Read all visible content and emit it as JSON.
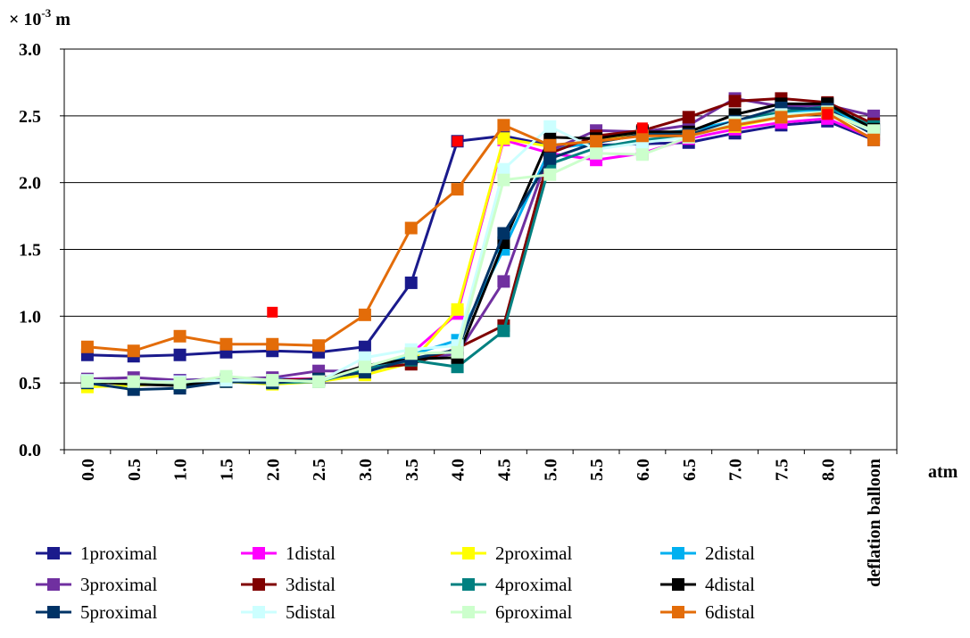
{
  "chart_data": {
    "type": "line",
    "ylabel_unit": "× 10",
    "ylabel_exp": "-3",
    "ylabel_suffix": " m",
    "xlabel": "atm",
    "ylim": [
      0,
      3.0
    ],
    "yticks": [
      "0.0",
      "0.5",
      "1.0",
      "1.5",
      "2.0",
      "2.5",
      "3.0"
    ],
    "categories": [
      "0.0",
      "0.5",
      "1.0",
      "1.5",
      "2.0",
      "2.5",
      "3.0",
      "3.5",
      "4.0",
      "4.5",
      "5.0",
      "5.5",
      "6.0",
      "6.5",
      "7.0",
      "7.5",
      "8.0",
      "deflation balloon"
    ],
    "grid": true,
    "legend_position": "bottom",
    "series": [
      {
        "name": "1proximal",
        "color": "#1a1a8c",
        "values": [
          0.71,
          0.7,
          0.71,
          0.73,
          0.74,
          0.73,
          0.77,
          1.25,
          2.31,
          2.35,
          2.28,
          2.28,
          2.29,
          2.3,
          2.37,
          2.43,
          2.46,
          2.32
        ]
      },
      {
        "name": "1distal",
        "color": "#ff00ff",
        "values": [
          0.5,
          0.5,
          0.52,
          0.53,
          0.53,
          0.53,
          0.6,
          0.72,
          1.02,
          2.32,
          2.22,
          2.17,
          2.22,
          2.33,
          2.4,
          2.45,
          2.48,
          2.33
        ]
      },
      {
        "name": "2proximal",
        "color": "#ffff00",
        "values": [
          0.47,
          0.48,
          0.5,
          0.51,
          0.49,
          0.51,
          0.56,
          0.65,
          1.05,
          2.33,
          2.27,
          2.31,
          2.36,
          2.37,
          2.42,
          2.49,
          2.53,
          2.37
        ]
      },
      {
        "name": "2distal",
        "color": "#00b0f0",
        "values": [
          0.52,
          0.5,
          0.52,
          0.53,
          0.53,
          0.52,
          0.61,
          0.71,
          0.82,
          1.5,
          2.25,
          2.3,
          2.36,
          2.39,
          2.46,
          2.52,
          2.55,
          2.4
        ]
      },
      {
        "name": "3proximal",
        "color": "#7030a0",
        "values": [
          0.53,
          0.54,
          0.52,
          0.53,
          0.54,
          0.59,
          0.59,
          0.67,
          0.72,
          1.26,
          2.24,
          2.39,
          2.38,
          2.43,
          2.63,
          2.57,
          2.58,
          2.5
        ]
      },
      {
        "name": "3distal",
        "color": "#800000",
        "values": [
          0.52,
          0.51,
          0.5,
          0.51,
          0.52,
          0.53,
          0.61,
          0.64,
          0.76,
          0.93,
          2.22,
          2.35,
          2.39,
          2.49,
          2.61,
          2.63,
          2.6,
          2.44
        ]
      },
      {
        "name": "4proximal",
        "color": "#008080",
        "values": [
          0.51,
          0.49,
          0.5,
          0.51,
          0.5,
          0.51,
          0.6,
          0.67,
          0.62,
          0.89,
          2.14,
          2.26,
          2.32,
          2.35,
          2.46,
          2.53,
          2.57,
          2.42
        ]
      },
      {
        "name": "4distal",
        "color": "#000000",
        "values": [
          0.51,
          0.49,
          0.48,
          0.52,
          0.51,
          0.52,
          0.63,
          0.68,
          0.69,
          1.55,
          2.34,
          2.33,
          2.38,
          2.38,
          2.51,
          2.59,
          2.59,
          2.4
        ]
      },
      {
        "name": "5proximal",
        "color": "#003366",
        "values": [
          0.5,
          0.45,
          0.46,
          0.51,
          0.5,
          0.53,
          0.58,
          0.68,
          0.75,
          1.62,
          2.18,
          2.3,
          2.36,
          2.36,
          2.46,
          2.56,
          2.55,
          2.36
        ]
      },
      {
        "name": "5distal",
        "color": "#ccffff",
        "values": [
          0.52,
          0.51,
          0.51,
          0.52,
          0.52,
          0.51,
          0.69,
          0.75,
          0.78,
          2.1,
          2.42,
          2.25,
          2.3,
          2.34,
          2.45,
          2.51,
          2.53,
          2.38
        ]
      },
      {
        "name": "6proximal",
        "color": "#ccffcc",
        "values": [
          0.51,
          0.51,
          0.5,
          0.55,
          0.52,
          0.51,
          0.62,
          0.72,
          0.73,
          2.02,
          2.06,
          2.22,
          2.21,
          2.34,
          2.44,
          2.5,
          2.53,
          2.39
        ]
      },
      {
        "name": "6distal",
        "color": "#e36c09",
        "values": [
          0.77,
          0.74,
          0.85,
          0.79,
          0.79,
          0.78,
          1.01,
          1.66,
          1.95,
          2.43,
          2.28,
          2.31,
          2.35,
          2.35,
          2.43,
          2.49,
          2.52,
          2.32
        ]
      }
    ],
    "highlighted_points": [
      {
        "category": "2.0",
        "value": 1.03,
        "color": "#ff0000"
      },
      {
        "category": "4.0",
        "value": 2.31,
        "color": "#ff0000"
      },
      {
        "category": "6.0",
        "value": 2.41,
        "color": "#ff0000"
      },
      {
        "category": "8.0",
        "value": 2.51,
        "color": "#ff0000"
      }
    ]
  }
}
